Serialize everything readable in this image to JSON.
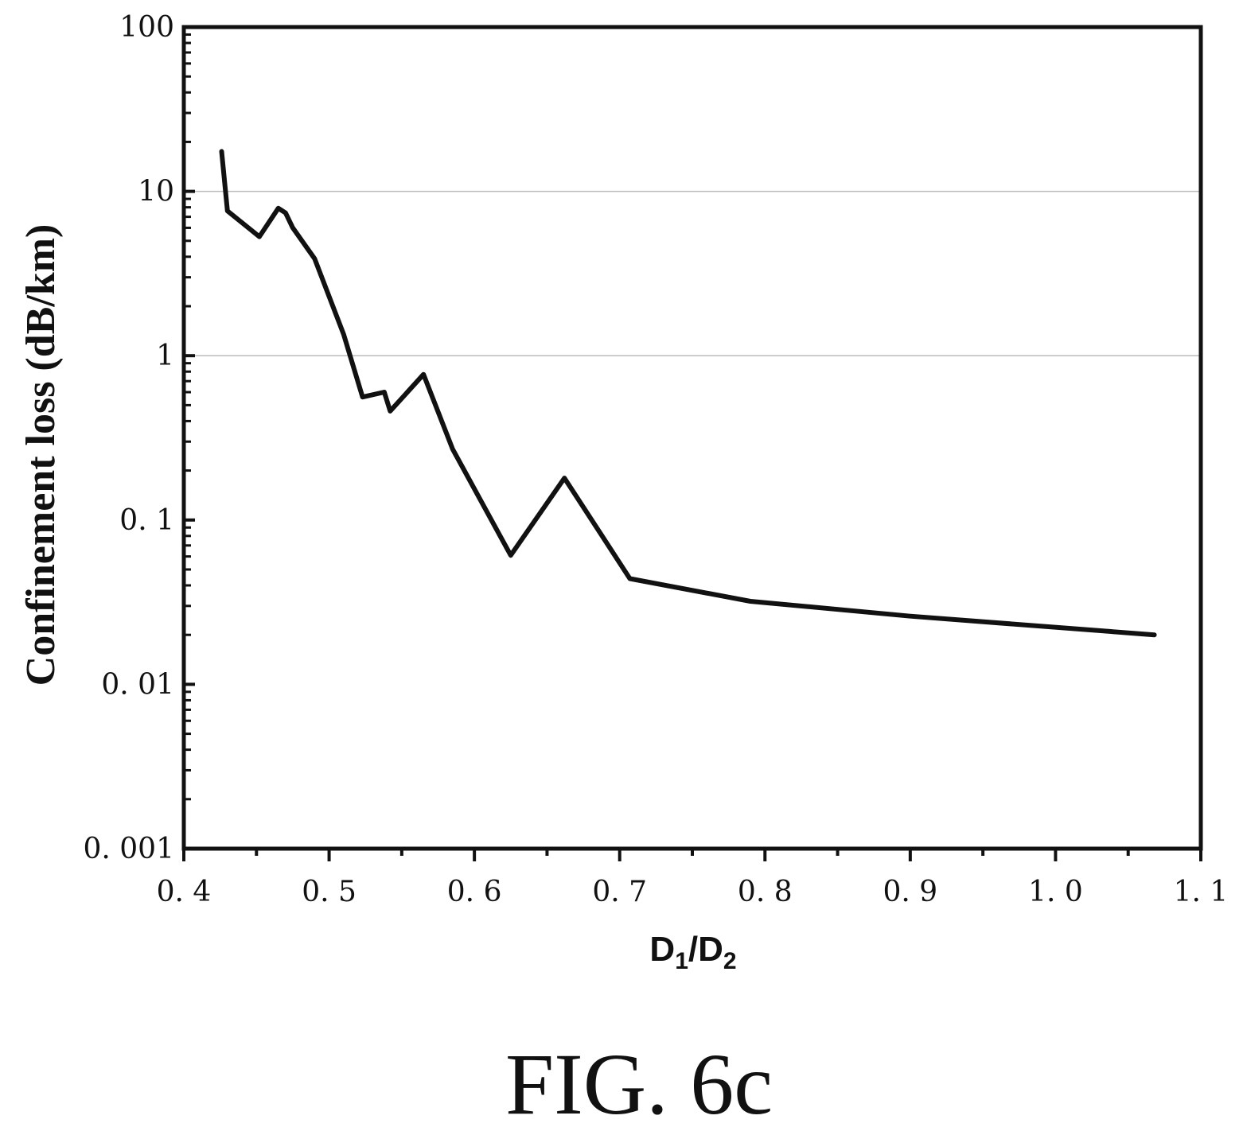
{
  "chart_data": {
    "type": "line",
    "ylabel": "Confinement loss (dB/km)",
    "xlabel": {
      "base1": "D",
      "sub1": "1",
      "sep": "/",
      "base2": "D",
      "sub2": "2"
    },
    "xlim": [
      0.4,
      1.1
    ],
    "ylim": [
      0.001,
      100
    ],
    "yscale": "log",
    "grid": "horizontal major lines at 1 and 10",
    "x_ticks": [
      "0. 4",
      "0. 5",
      "0. 6",
      "0. 7",
      "0. 8",
      "0. 9",
      "1. 0",
      "1. 1"
    ],
    "y_ticks": [
      "100",
      "10",
      "1",
      "0. 1",
      "0. 01",
      "0. 001"
    ],
    "series": [
      {
        "x": [
          0.426,
          0.43,
          0.452,
          0.465,
          0.47,
          0.475,
          0.49,
          0.51,
          0.523,
          0.538,
          0.542,
          0.565,
          0.585,
          0.625,
          0.662,
          0.707,
          0.79,
          0.9,
          1.068
        ],
        "y": [
          17.5,
          7.6,
          5.3,
          7.9,
          7.4,
          6.0,
          3.9,
          1.35,
          0.56,
          0.6,
          0.46,
          0.77,
          0.27,
          0.061,
          0.18,
          0.044,
          0.032,
          0.026,
          0.02
        ]
      }
    ]
  },
  "caption": "FIG. 6c"
}
